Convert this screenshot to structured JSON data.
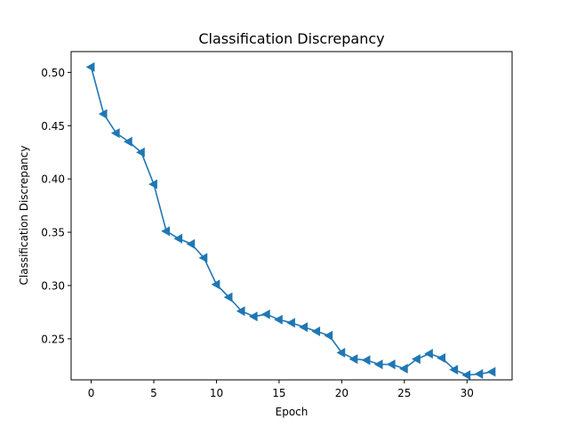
{
  "chart_data": {
    "type": "line",
    "title": "Classification Discrepancy",
    "xlabel": "Epoch",
    "ylabel": "Classification Discrepancy",
    "xlim": [
      -1.6,
      33.6
    ],
    "ylim": [
      0.2115,
      0.5195
    ],
    "xticks": [
      0,
      5,
      10,
      15,
      20,
      25,
      30
    ],
    "xtick_labels": [
      "0",
      "5",
      "10",
      "15",
      "20",
      "25",
      "30"
    ],
    "yticks": [
      0.25,
      0.3,
      0.35,
      0.4,
      0.45,
      0.5
    ],
    "ytick_labels": [
      "0.25",
      "0.30",
      "0.35",
      "0.40",
      "0.45",
      "0.50"
    ],
    "grid": false,
    "series": [
      {
        "color": "#1f77b4",
        "marker": "triangle-left",
        "x": [
          0,
          1,
          2,
          3,
          4,
          5,
          6,
          7,
          8,
          9,
          10,
          11,
          12,
          13,
          14,
          15,
          16,
          17,
          18,
          19,
          20,
          21,
          22,
          23,
          24,
          25,
          26,
          27,
          28,
          29,
          30,
          31,
          32
        ],
        "values": [
          0.505,
          0.461,
          0.443,
          0.435,
          0.425,
          0.395,
          0.351,
          0.344,
          0.339,
          0.326,
          0.301,
          0.289,
          0.276,
          0.271,
          0.273,
          0.268,
          0.265,
          0.261,
          0.257,
          0.253,
          0.237,
          0.231,
          0.23,
          0.226,
          0.226,
          0.222,
          0.231,
          0.236,
          0.232,
          0.221,
          0.216,
          0.217,
          0.219
        ]
      }
    ]
  }
}
